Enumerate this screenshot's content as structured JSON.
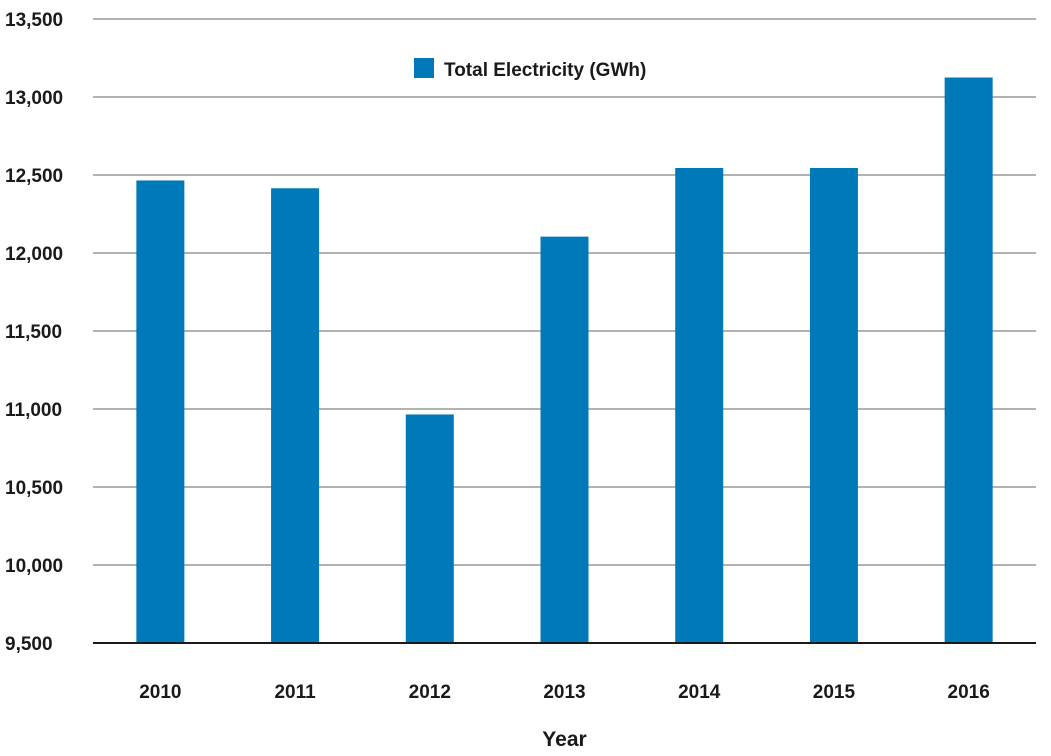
{
  "chart_data": {
    "type": "bar",
    "title": "",
    "xlabel": "Year",
    "ylabel": "",
    "categories": [
      "2010",
      "2011",
      "2012",
      "2013",
      "2014",
      "2015",
      "2016"
    ],
    "series": [
      {
        "name": "Total Electricity (GWh)",
        "color": "#0079b9",
        "values": [
          12465,
          12415,
          10965,
          12105,
          12545,
          12545,
          13125
        ]
      }
    ],
    "ylim": [
      9500,
      13500
    ],
    "yticks": [
      9500,
      10000,
      10500,
      11000,
      11500,
      12000,
      12500,
      13000,
      13500
    ],
    "ytick_labels": [
      "9,500",
      "10,000",
      "10,500",
      "11,000",
      "11,500",
      "12,000",
      "12,500",
      "13,000",
      "13,500"
    ],
    "grid": true,
    "gridline_color": "#b3b3b3",
    "axis_color": "#1a1a1a",
    "legend_position": "top-center"
  }
}
